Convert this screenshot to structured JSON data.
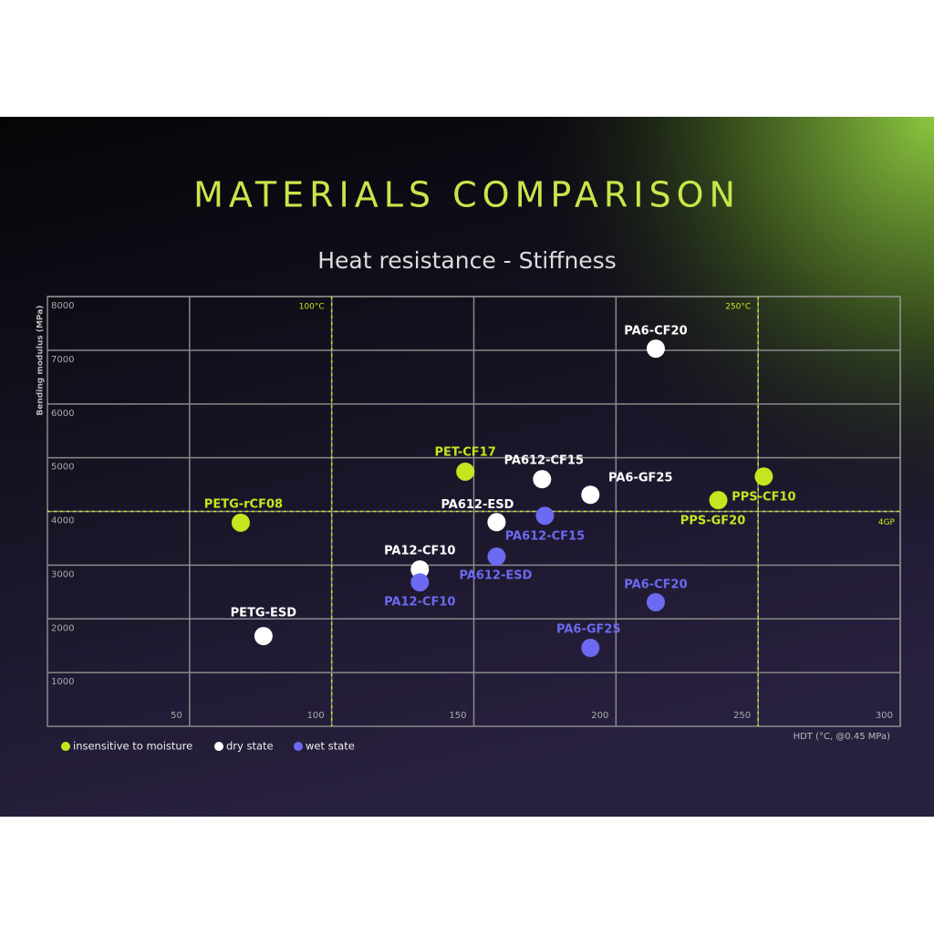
{
  "chart_data": {
    "type": "scatter",
    "title": "MATERIALS COMPARISON",
    "subtitle": "Heat resistance - Stiffness",
    "x_label": "HDT (°C, @0.45 MPa)",
    "y_label": "Bending modulus (MPa)",
    "xlim": [
      0,
      300
    ],
    "xticks": [
      50,
      100,
      150,
      200,
      250,
      300
    ],
    "ylim": [
      0,
      8000
    ],
    "yticks": [
      1000,
      2000,
      3000,
      4000,
      5000,
      6000,
      7000,
      8000
    ],
    "grid": true,
    "annotations": [
      {
        "x": 100,
        "label": "100°C"
      },
      {
        "x": 250,
        "label": "250°C"
      },
      {
        "y": 4000,
        "label": "4GP"
      }
    ],
    "series": [
      {
        "name": "insensitive to moisture",
        "color": "#c5e51f",
        "labels": [
          "PETG-rCF08",
          "PET-CF17",
          "PPS-GF20",
          "PPS-CF10"
        ],
        "x": [
          68,
          147,
          236,
          252
        ],
        "values": [
          3790,
          4740,
          4210,
          4650
        ]
      },
      {
        "name": "dry state",
        "color": "#ffffff",
        "labels": [
          "PA6-CF20",
          "PA612-CF15",
          "PA6-GF25",
          "PA612-ESD",
          "PA12-CF10",
          "PETG-ESD"
        ],
        "x": [
          214,
          174,
          191,
          158,
          131,
          76
        ],
        "values": [
          7030,
          4600,
          4310,
          3800,
          2920,
          1680
        ]
      },
      {
        "name": "wet state",
        "color": "#6b6af0",
        "labels": [
          "PA612-CF15",
          "PA612-ESD",
          "PA12-CF10",
          "PA6-CF20",
          "PA6-GF25"
        ],
        "x": [
          175,
          158,
          131,
          214,
          191
        ],
        "values": [
          3920,
          3160,
          2680,
          2310,
          1460
        ]
      }
    ]
  }
}
